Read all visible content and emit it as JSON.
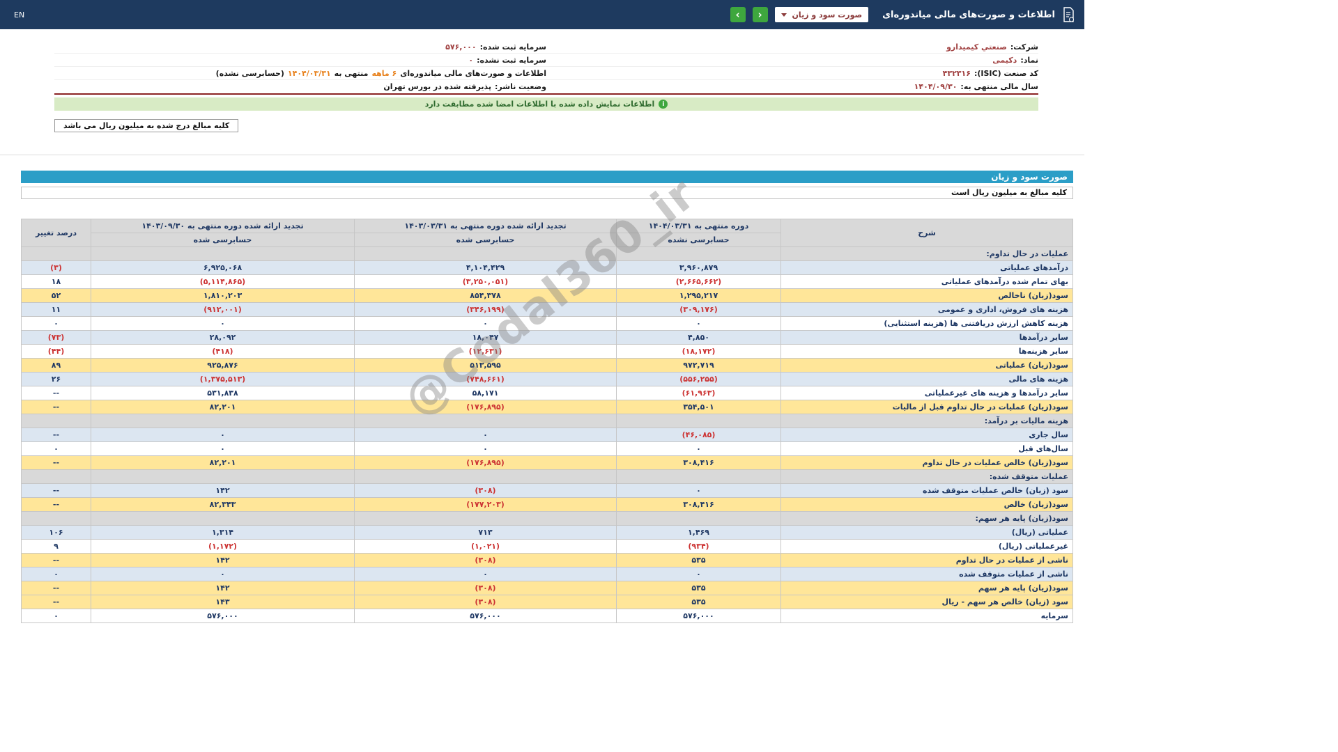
{
  "navbar": {
    "title": "اطلاعات و صورت‌های مالی میاندوره‌ای",
    "dropdown_value": "صورت سود و زیان",
    "prev_arrow": "‹",
    "next_arrow": "›",
    "lang": "EN"
  },
  "company_info": {
    "right": [
      {
        "label": "شرکت:",
        "value": "صنعتي کیمیدارو"
      },
      {
        "label": "نماد:",
        "value": "دکیمی"
      },
      {
        "label": "کد صنعت (ISIC):",
        "value": "۴۳۲۳۱۶"
      },
      {
        "label": "سال مالی منتهی به:",
        "value": "۱۴۰۴/۰۹/۳۰"
      }
    ],
    "left": [
      {
        "label": "سرمایه ثبت شده:",
        "value": "۵۷۶,۰۰۰"
      },
      {
        "label": "سرمایه ثبت نشده:",
        "value": "۰"
      }
    ],
    "period_line": {
      "p1": "اطلاعات و صورت‌های مالی میاندوره‌ای ",
      "p2": "۶ ماهه",
      "p3": " منتهی به ",
      "p4": "۱۴۰۴/۰۳/۳۱",
      "p5": "(حسابرسی نشده)"
    },
    "status": {
      "label": "وضعیت ناشر:",
      "value": "پذیرفته شده در بورس تهران"
    }
  },
  "banner": {
    "text": "اطلاعات نمایش داده شده با اطلاعات امضا شده مطابقت دارد",
    "icon": "i"
  },
  "note": {
    "text": "کلیه مبالغ درج شده به میلیون ریال می باشد"
  },
  "statement": {
    "title": "صورت سود و زیان",
    "subtitle": "کلیه مبالغ به میلیون ریال است"
  },
  "watermark": "@Codal360_ir",
  "table": {
    "headers": {
      "desc": "شرح",
      "col1_title": "دوره منتهی به ۱۴۰۴/۰۳/۳۱",
      "col1_sub": "حسابرسی نشده",
      "col2_title": "تجدید ارائه شده دوره منتهی به ۱۴۰۳/۰۳/۳۱",
      "col2_sub": "حسابرسی شده",
      "col3_title": "تجدید ارائه شده دوره منتهی به ۱۴۰۳/۰۹/۳۰",
      "col3_sub": "حسابرسی شده",
      "pct": "درصد تغییر"
    },
    "rows": [
      {
        "label": "عملیات در حال تداوم:",
        "style": "section",
        "values": [
          "",
          "",
          "",
          ""
        ]
      },
      {
        "label": "درآمدهای عملیاتی",
        "style": "blue",
        "values": [
          "۳,۹۶۰,۸۷۹",
          "۴,۱۰۴,۴۲۹",
          "۶,۹۲۵,۰۶۸",
          "(۳)"
        ]
      },
      {
        "label": "بهای تمام شده درآمدهای عملیاتی",
        "style": "white",
        "values": [
          "(۲,۶۶۵,۶۶۲)",
          "(۳,۲۵۰,۰۵۱)",
          "(۵,۱۱۴,۸۶۵)",
          "۱۸"
        ]
      },
      {
        "label": "سود(زیان) ناخالص",
        "style": "yellow",
        "values": [
          "۱,۲۹۵,۲۱۷",
          "۸۵۴,۳۷۸",
          "۱,۸۱۰,۲۰۳",
          "۵۲"
        ]
      },
      {
        "label": "هزینه های فروش، اداری و عمومی",
        "style": "blue",
        "values": [
          "(۳۰۹,۱۷۶)",
          "(۳۴۶,۱۹۹)",
          "(۹۱۲,۰۰۱)",
          "۱۱"
        ]
      },
      {
        "label": "هزینه کاهش ارزش دریافتنی ها (هزینه استثنایی)",
        "style": "white",
        "values": [
          "۰",
          "۰",
          "۰",
          "۰"
        ]
      },
      {
        "label": "سایر درآمدها",
        "style": "blue",
        "values": [
          "۴,۸۵۰",
          "۱۸,۰۴۷",
          "۲۸,۰۹۲",
          "(۷۳)"
        ]
      },
      {
        "label": "سایر هزینه‌ها",
        "style": "white",
        "values": [
          "(۱۸,۱۷۲)",
          "(۱۲,۶۳۱)",
          "(۴۱۸)",
          "(۴۴)"
        ]
      },
      {
        "label": "سود(زیان) عملیاتی",
        "style": "yellow",
        "values": [
          "۹۷۲,۷۱۹",
          "۵۱۳,۵۹۵",
          "۹۲۵,۸۷۶",
          "۸۹"
        ]
      },
      {
        "label": "هزینه های مالی",
        "style": "blue",
        "values": [
          "(۵۵۶,۲۵۵)",
          "(۷۴۸,۶۶۱)",
          "(۱,۳۷۵,۵۱۳)",
          "۲۶"
        ]
      },
      {
        "label": "سایر درآمدها و هزینه های غیرعملیاتی",
        "style": "white",
        "values": [
          "(۶۱,۹۶۳)",
          "۵۸,۱۷۱",
          "۵۳۱,۸۳۸",
          "--"
        ]
      },
      {
        "label": "سود(زیان) عملیات در حال تداوم قبل از مالیات",
        "style": "yellow",
        "values": [
          "۳۵۴,۵۰۱",
          "(۱۷۶,۸۹۵)",
          "۸۲,۲۰۱",
          "--"
        ]
      },
      {
        "label": "هزینه مالیات بر درآمد:",
        "style": "section",
        "values": [
          "",
          "",
          "",
          ""
        ]
      },
      {
        "label": "سال جاری",
        "style": "blue",
        "values": [
          "(۴۶,۰۸۵)",
          "۰",
          "۰",
          "--"
        ]
      },
      {
        "label": "سال‌های قبل",
        "style": "white",
        "values": [
          "۰",
          "۰",
          "۰",
          "۰"
        ]
      },
      {
        "label": "سود(زیان) خالص عملیات در حال تداوم",
        "style": "yellow",
        "values": [
          "۳۰۸,۴۱۶",
          "(۱۷۶,۸۹۵)",
          "۸۲,۲۰۱",
          "--"
        ]
      },
      {
        "label": "عملیات متوقف شده:",
        "style": "section",
        "values": [
          "",
          "",
          "",
          ""
        ]
      },
      {
        "label": "سود (زیان) خالص عملیات متوقف شده",
        "style": "blue",
        "values": [
          "۰",
          "(۳۰۸)",
          "۱۴۲",
          "--"
        ]
      },
      {
        "label": "سود(زیان) خالص",
        "style": "yellow",
        "values": [
          "۳۰۸,۴۱۶",
          "(۱۷۷,۲۰۳)",
          "۸۲,۳۴۳",
          "--"
        ]
      },
      {
        "label": "سود(زیان) پایه هر سهم:",
        "style": "section",
        "values": [
          "",
          "",
          "",
          ""
        ]
      },
      {
        "label": "عملیاتی (ریال)",
        "style": "blue",
        "values": [
          "۱,۴۶۹",
          "۷۱۳",
          "۱,۳۱۴",
          "۱۰۶"
        ]
      },
      {
        "label": "غیرعملیاتی (ریال)",
        "style": "white",
        "values": [
          "(۹۳۴)",
          "(۱,۰۲۱)",
          "(۱,۱۷۲)",
          "۹"
        ]
      },
      {
        "label": "ناشی از عملیات در حال تداوم",
        "style": "yellow",
        "values": [
          "۵۳۵",
          "(۳۰۸)",
          "۱۴۲",
          "--"
        ]
      },
      {
        "label": "ناشی از عملیات متوقف شده",
        "style": "blue",
        "values": [
          "۰",
          "۰",
          "۰",
          "۰"
        ]
      },
      {
        "label": "سود(زیان) پایه هر سهم",
        "style": "yellow",
        "values": [
          "۵۳۵",
          "(۳۰۸)",
          "۱۴۲",
          "--"
        ]
      },
      {
        "label": "سود (زیان) خالص هر سهم - ریال",
        "style": "yellow",
        "values": [
          "۵۳۵",
          "(۳۰۸)",
          "۱۴۳",
          "--"
        ]
      },
      {
        "label": "سرمایه",
        "style": "white",
        "values": [
          "۵۷۶,۰۰۰",
          "۵۷۶,۰۰۰",
          "۵۷۶,۰۰۰",
          "۰"
        ]
      }
    ]
  }
}
